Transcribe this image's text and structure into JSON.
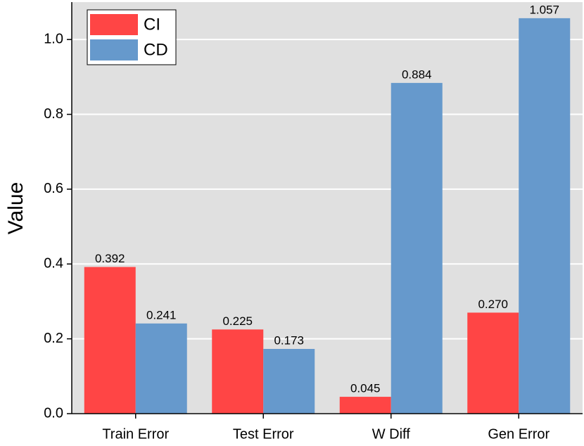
{
  "chart_data": {
    "type": "bar",
    "y_label": "Value",
    "categories": [
      "Train Error",
      "Test Error",
      "W Diff",
      "Gen Error"
    ],
    "series": [
      {
        "name": "CI",
        "color": "#ff4545",
        "values": [
          0.392,
          0.225,
          0.045,
          0.27
        ],
        "value_labels": [
          "0.392",
          "0.225",
          "0.045",
          "0.270"
        ]
      },
      {
        "name": "CD",
        "color": "#6699cc",
        "values": [
          0.241,
          0.173,
          0.884,
          1.057
        ],
        "value_labels": [
          "0.241",
          "0.173",
          "0.884",
          "1.057"
        ]
      }
    ],
    "ylim": [
      0,
      1.1
    ],
    "yticks": [
      {
        "value": 0,
        "label": "0.0"
      },
      0.2,
      0.4,
      0.6,
      0.8,
      {
        "value": 1,
        "label": "1.0"
      }
    ],
    "grid": true,
    "legend": "upper-left"
  }
}
